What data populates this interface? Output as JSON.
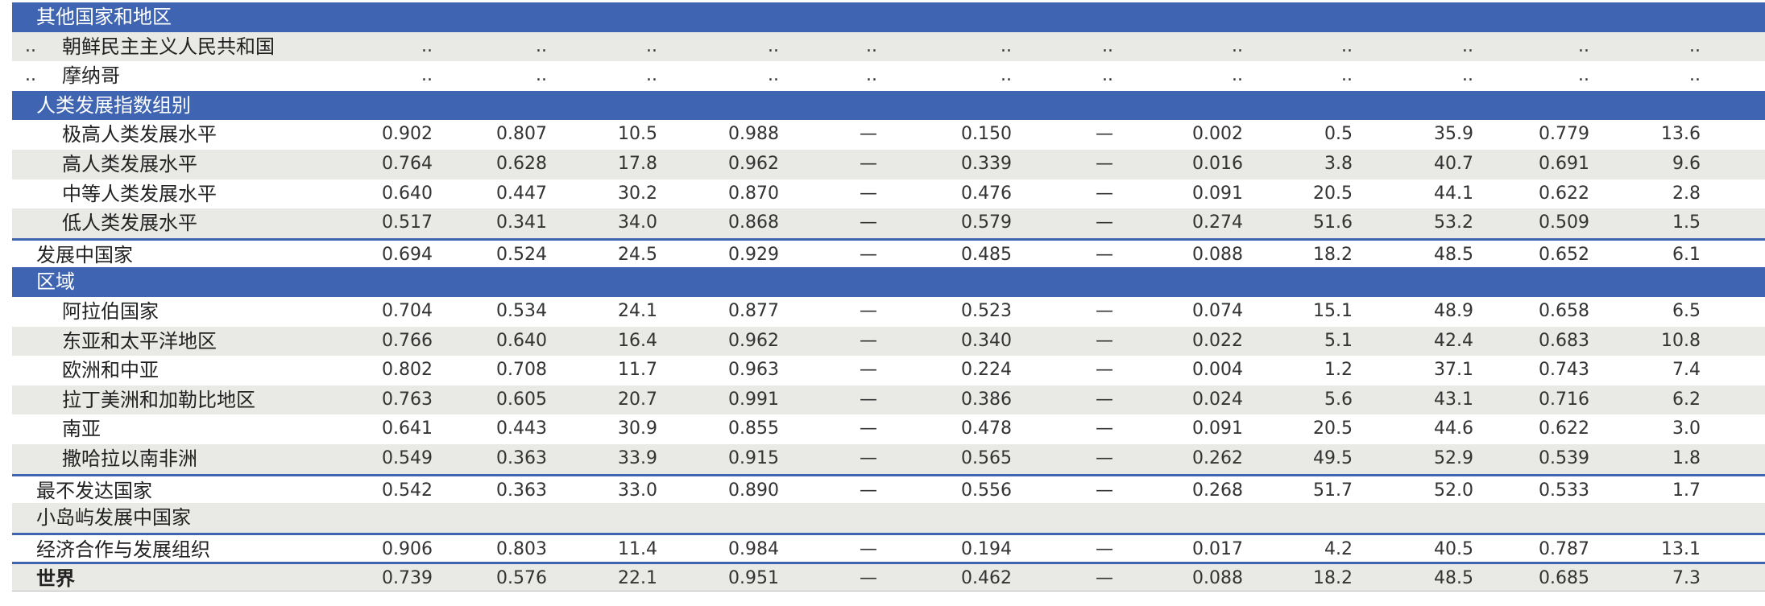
{
  "table": {
    "rows": [
      {
        "kind": "section",
        "label": "其他国家和地区"
      },
      {
        "kind": "item",
        "prefix": "..",
        "label": "朝鲜民主主义人民共和国",
        "values": [
          "..",
          "..",
          "..",
          "..",
          "..",
          "..",
          "..",
          "..",
          "..",
          "..",
          "..",
          ".."
        ]
      },
      {
        "kind": "item",
        "prefix": "..",
        "label": "摩纳哥",
        "values": [
          "..",
          "..",
          "..",
          "..",
          "..",
          "..",
          "..",
          "..",
          "..",
          "..",
          "..",
          ".."
        ]
      },
      {
        "kind": "section",
        "label": "人类发展指数组别"
      },
      {
        "kind": "item",
        "label": "极高人类发展水平",
        "values": [
          "0.902",
          "0.807",
          "10.5",
          "0.988",
          "—",
          "0.150",
          "—",
          "0.002",
          "0.5",
          "35.9",
          "0.779",
          "13.6"
        ]
      },
      {
        "kind": "item",
        "label": "高人类发展水平",
        "values": [
          "0.764",
          "0.628",
          "17.8",
          "0.962",
          "—",
          "0.339",
          "—",
          "0.016",
          "3.8",
          "40.7",
          "0.691",
          "9.6"
        ]
      },
      {
        "kind": "item",
        "label": "中等人类发展水平",
        "values": [
          "0.640",
          "0.447",
          "30.2",
          "0.870",
          "—",
          "0.476",
          "—",
          "0.091",
          "20.5",
          "44.1",
          "0.622",
          "2.8"
        ]
      },
      {
        "kind": "item",
        "label": "低人类发展水平",
        "values": [
          "0.517",
          "0.341",
          "34.0",
          "0.868",
          "—",
          "0.579",
          "—",
          "0.274",
          "51.6",
          "53.2",
          "0.509",
          "1.5"
        ]
      },
      {
        "kind": "group",
        "label": "发展中国家",
        "values": [
          "0.694",
          "0.524",
          "24.5",
          "0.929",
          "—",
          "0.485",
          "—",
          "0.088",
          "18.2",
          "48.5",
          "0.652",
          "6.1"
        ]
      },
      {
        "kind": "section",
        "label": "区域"
      },
      {
        "kind": "item",
        "label": "阿拉伯国家",
        "values": [
          "0.704",
          "0.534",
          "24.1",
          "0.877",
          "—",
          "0.523",
          "—",
          "0.074",
          "15.1",
          "48.9",
          "0.658",
          "6.5"
        ]
      },
      {
        "kind": "item",
        "label": "东亚和太平洋地区",
        "values": [
          "0.766",
          "0.640",
          "16.4",
          "0.962",
          "—",
          "0.340",
          "—",
          "0.022",
          "5.1",
          "42.4",
          "0.683",
          "10.8"
        ]
      },
      {
        "kind": "item",
        "label": "欧洲和中亚",
        "values": [
          "0.802",
          "0.708",
          "11.7",
          "0.963",
          "—",
          "0.224",
          "—",
          "0.004",
          "1.2",
          "37.1",
          "0.743",
          "7.4"
        ]
      },
      {
        "kind": "item",
        "label": "拉丁美洲和加勒比地区",
        "values": [
          "0.763",
          "0.605",
          "20.7",
          "0.991",
          "—",
          "0.386",
          "—",
          "0.024",
          "5.6",
          "43.1",
          "0.716",
          "6.2"
        ]
      },
      {
        "kind": "item",
        "label": "南亚",
        "values": [
          "0.641",
          "0.443",
          "30.9",
          "0.855",
          "—",
          "0.478",
          "—",
          "0.091",
          "20.5",
          "44.6",
          "0.622",
          "3.0"
        ]
      },
      {
        "kind": "item",
        "label": "撒哈拉以南非洲",
        "values": [
          "0.549",
          "0.363",
          "33.9",
          "0.915",
          "—",
          "0.565",
          "—",
          "0.262",
          "49.5",
          "52.9",
          "0.539",
          "1.8"
        ]
      },
      {
        "kind": "group",
        "label": "最不发达国家",
        "values": [
          "0.542",
          "0.363",
          "33.0",
          "0.890",
          "—",
          "0.556",
          "—",
          "0.268",
          "51.7",
          "52.0",
          "0.533",
          "1.7"
        ]
      },
      {
        "kind": "group",
        "label": "小岛屿发展中国家"
      },
      {
        "kind": "group",
        "label": "经济合作与发展组织",
        "values": [
          "0.906",
          "0.803",
          "11.4",
          "0.984",
          "—",
          "0.194",
          "—",
          "0.017",
          "4.2",
          "40.5",
          "0.787",
          "13.1"
        ]
      },
      {
        "kind": "total",
        "label": "世界",
        "values": [
          "0.739",
          "0.576",
          "22.1",
          "0.951",
          "—",
          "0.462",
          "—",
          "0.088",
          "18.2",
          "48.5",
          "0.685",
          "7.3"
        ]
      }
    ]
  }
}
